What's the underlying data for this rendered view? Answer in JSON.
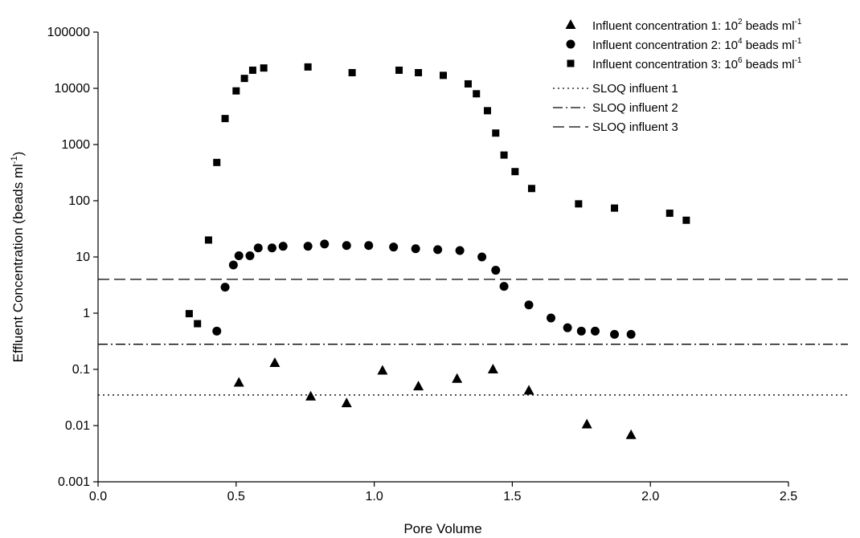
{
  "chart_data": {
    "type": "scatter",
    "xlabel": "Pore Volume",
    "ylabel_main": "Effluent Concentration (beads ml",
    "ylabel_sup": "-1",
    "ylabel_close": ")",
    "yscale": "log",
    "xlim": [
      0.0,
      2.5
    ],
    "ylim": [
      0.001,
      100000
    ],
    "grid": false,
    "legend_position": "top-right",
    "x_ticks": [
      "0.0",
      "0.5",
      "1.0",
      "1.5",
      "2.0",
      "2.5"
    ],
    "y_ticks": [
      "0.001",
      "0.01",
      "0.1",
      "1",
      "10",
      "100",
      "1000",
      "10000",
      "100000"
    ],
    "series": [
      {
        "name_prefix": "Influent concentration 1:  10",
        "name_sup": "2",
        "name_suffix": " beads ml",
        "name_sup2": "-1",
        "marker": "triangle",
        "x": [
          0.51,
          0.64,
          0.77,
          0.9,
          1.03,
          1.16,
          1.3,
          1.43,
          1.56,
          1.77,
          1.93
        ],
        "y": [
          0.058,
          0.13,
          0.033,
          0.025,
          0.095,
          0.05,
          0.068,
          0.1,
          0.042,
          0.0105,
          0.0068
        ]
      },
      {
        "name_prefix": "Influent concentration 2:  10",
        "name_sup": "4",
        "name_suffix": " beads ml",
        "name_sup2": "-1",
        "marker": "circle",
        "x": [
          0.43,
          0.46,
          0.49,
          0.51,
          0.55,
          0.58,
          0.63,
          0.67,
          0.76,
          0.82,
          0.9,
          0.98,
          1.07,
          1.15,
          1.23,
          1.31,
          1.39,
          1.44,
          1.47,
          1.56,
          1.64,
          1.7,
          1.75,
          1.8,
          1.87,
          1.93
        ],
        "y": [
          0.48,
          2.9,
          7.2,
          10.5,
          10.5,
          14.5,
          14.5,
          15.5,
          15.5,
          17,
          16,
          16,
          15,
          14,
          13.5,
          13,
          10,
          5.8,
          3.0,
          1.4,
          0.82,
          0.55,
          0.48,
          0.48,
          0.42,
          0.42
        ]
      },
      {
        "name_prefix": "Influent concentration 3:  10",
        "name_sup": "6",
        "name_suffix": " beads ml",
        "name_sup2": "-1",
        "marker": "square",
        "x": [
          0.33,
          0.36,
          0.4,
          0.43,
          0.46,
          0.5,
          0.53,
          0.56,
          0.6,
          0.76,
          0.92,
          1.09,
          1.16,
          1.25,
          1.34,
          1.37,
          1.41,
          1.44,
          1.47,
          1.51,
          1.57,
          1.74,
          1.87,
          2.07,
          2.13
        ],
        "y": [
          0.98,
          0.65,
          20,
          480,
          2900,
          9000,
          15000,
          21000,
          23000,
          24000,
          19000,
          21000,
          19000,
          17000,
          12000,
          8000,
          4000,
          1600,
          650,
          330,
          165,
          88,
          74,
          60,
          45
        ]
      }
    ],
    "reference_lines": [
      {
        "name": "SLOQ influent 1",
        "y": 0.035,
        "style": "dotted"
      },
      {
        "name": "SLOQ influent 2",
        "y": 0.28,
        "style": "dashdot"
      },
      {
        "name": "SLOQ influent 3",
        "y": 4.0,
        "style": "dashed"
      }
    ]
  }
}
